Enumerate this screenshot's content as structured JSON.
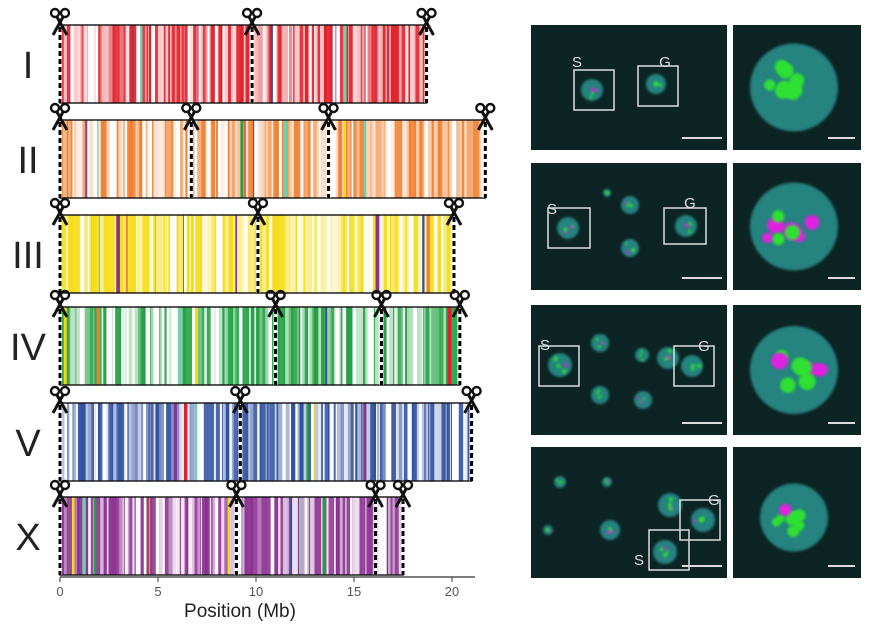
{
  "chart_data": {
    "type": "bar",
    "xlabel": "Position (Mb)",
    "xlim": [
      0,
      21.5
    ],
    "xticks": [
      0,
      5,
      10,
      15,
      20
    ],
    "grid": false,
    "chromosomes": [
      {
        "name": "I",
        "length": 18.7,
        "cut_sites": [
          0,
          9.8,
          18.7
        ],
        "color": "#e0202a"
      },
      {
        "name": "II",
        "length": 21.7,
        "cut_sites": [
          0,
          6.7,
          13.7,
          21.7
        ],
        "color": "#f08030"
      },
      {
        "name": "III",
        "length": 20.1,
        "cut_sites": [
          0,
          10.1,
          20.1
        ],
        "color": "#f5dc10"
      },
      {
        "name": "IV",
        "length": 20.4,
        "cut_sites": [
          0,
          11.0,
          16.4,
          20.4
        ],
        "color": "#20a040"
      },
      {
        "name": "V",
        "length": 21.0,
        "cut_sites": [
          0,
          9.2,
          21.0
        ],
        "color": "#3050a0"
      },
      {
        "name": "X",
        "length": 17.5,
        "cut_sites": [
          0,
          9.0,
          16.1,
          17.5
        ],
        "color": "#8a3090"
      }
    ]
  },
  "micrographs": {
    "box_labels": {
      "s": "S",
      "g": "G"
    },
    "colors": {
      "background": "#0c2423",
      "dna": "#2fa3a0",
      "green": "#2fe030",
      "magenta": "#e020e0"
    }
  }
}
